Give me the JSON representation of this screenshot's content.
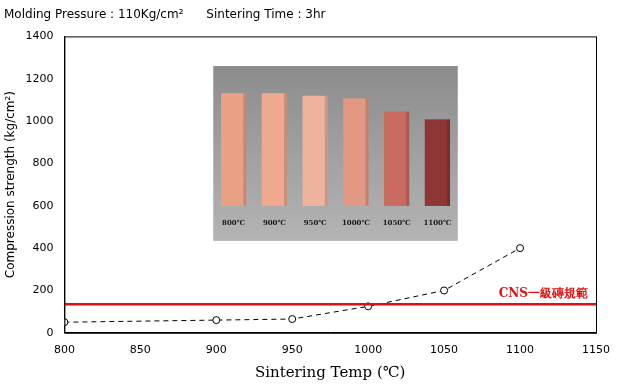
{
  "chart_data": {
    "type": "line",
    "title": "Molding Pressure : 110Kg/cm²      Sintering Time : 3hr",
    "x_label": "Sintering Temp (℃)",
    "y_label": "Compression strength (kg/cm²)",
    "x": [
      800,
      900,
      950,
      1000,
      1050,
      1100
    ],
    "values": [
      50,
      60,
      65,
      125,
      200,
      400
    ],
    "color": "#000000",
    "marker": "open circle",
    "line_style": "dashed",
    "xlim": [
      800,
      1150
    ],
    "xticks": [
      800,
      850,
      900,
      950,
      1000,
      1050,
      1100,
      1150
    ],
    "ylim": [
      0,
      1400
    ],
    "yticks": [
      0,
      200,
      400,
      600,
      800,
      1000,
      1200,
      1400
    ],
    "grid": false,
    "annotations": [
      {
        "type": "hline",
        "y": 135,
        "label": "CNS一級磚規範",
        "color": "#e01010"
      }
    ],
    "inset": {
      "labels": [
        "800℃",
        "900℃",
        "950℃",
        "1000℃",
        "1050℃",
        "1100℃"
      ]
    }
  }
}
